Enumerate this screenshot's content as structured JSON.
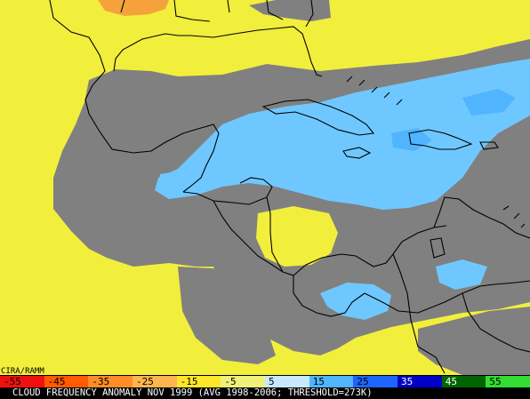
{
  "credit": "CIRA/RAMM",
  "caption": "CLOUD FREQUENCY ANOMALY NOV 1999 (AVG 1998-2006; THRESHOLD=273K)",
  "legend": [
    {
      "label": "-55",
      "color": "#f01010",
      "text_color": "#000000"
    },
    {
      "label": "-45",
      "color": "#ff5a00",
      "text_color": "#000000"
    },
    {
      "label": "-35",
      "color": "#ff8c28",
      "text_color": "#000000"
    },
    {
      "label": "-25",
      "color": "#ffb450",
      "text_color": "#000000"
    },
    {
      "label": "-15",
      "color": "#ffe628",
      "text_color": "#000000"
    },
    {
      "label": "-5",
      "color": "#f0f07a",
      "text_color": "#000000"
    },
    {
      "label": "5",
      "color": "#c8e8ff",
      "text_color": "#000000"
    },
    {
      "label": "15",
      "color": "#50b4ff",
      "text_color": "#000000"
    },
    {
      "label": "25",
      "color": "#1e64ff",
      "text_color": "#000000"
    },
    {
      "label": "35",
      "color": "#0000c8",
      "text_color": "#ffffff"
    },
    {
      "label": "45",
      "color": "#006400",
      "text_color": "#ffffff"
    },
    {
      "label": "55",
      "color": "#32dc32",
      "text_color": "#000000"
    }
  ],
  "colors": {
    "no_data_gray": "#808080",
    "positive_blue": "#6ec8ff",
    "negative_yellow": "#f2ee3c",
    "strong_negative_orange": "#f5a23c",
    "boundary_lines": "#000000"
  },
  "map_region": "Gulf of Mexico, Caribbean Sea and Central America"
}
